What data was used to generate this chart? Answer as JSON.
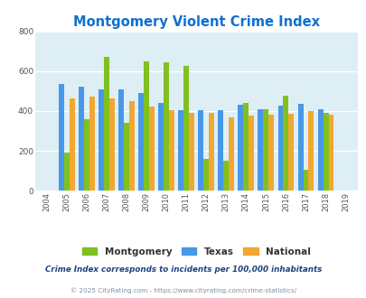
{
  "title": "Montgomery Violent Crime Index",
  "years": [
    2004,
    2005,
    2006,
    2007,
    2008,
    2009,
    2010,
    2011,
    2012,
    2013,
    2014,
    2015,
    2016,
    2017,
    2018,
    2019
  ],
  "montgomery": [
    null,
    190,
    360,
    670,
    340,
    650,
    645,
    625,
    158,
    150,
    440,
    410,
    475,
    105,
    390,
    null
  ],
  "texas": [
    null,
    535,
    520,
    510,
    510,
    490,
    440,
    405,
    405,
    403,
    432,
    410,
    428,
    435,
    408,
    null
  ],
  "national": [
    null,
    462,
    470,
    464,
    448,
    422,
    403,
    390,
    390,
    368,
    378,
    383,
    386,
    398,
    382,
    null
  ],
  "montgomery_color": "#80c020",
  "texas_color": "#4898e8",
  "national_color": "#f0a830",
  "bg_color": "#deeef5",
  "ylim": [
    0,
    800
  ],
  "yticks": [
    0,
    200,
    400,
    600,
    800
  ],
  "title_color": "#1070d0",
  "title_fontsize": 10.5,
  "legend_labels": [
    "Montgomery",
    "Texas",
    "National"
  ],
  "footnote1": "Crime Index corresponds to incidents per 100,000 inhabitants",
  "footnote2": "© 2025 CityRating.com - https://www.cityrating.com/crime-statistics/",
  "footnote1_color": "#204080",
  "footnote2_color": "#8090a0"
}
